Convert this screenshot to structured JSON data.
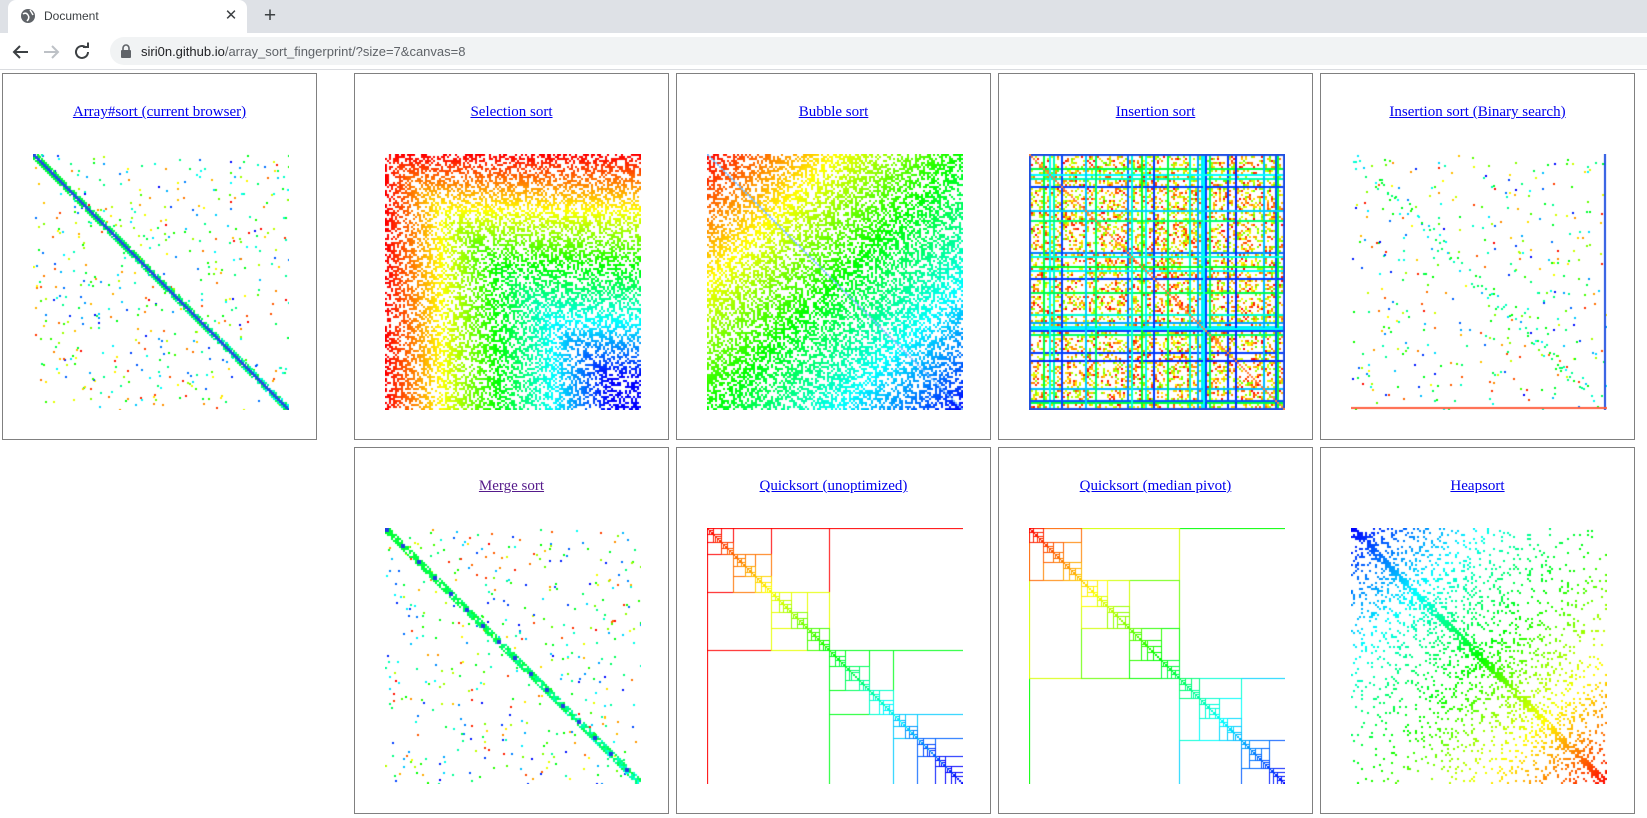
{
  "browser": {
    "tab_title": "Document",
    "url_host": "siri0n.github.io",
    "url_path": "/array_sort_fingerprint/?size=7&canvas=8"
  },
  "panels": [
    {
      "label": "Array#sort (current browser)",
      "pattern": "native"
    },
    {
      "label": "Selection sort",
      "pattern": "selection"
    },
    {
      "label": "Bubble sort",
      "pattern": "bubble"
    },
    {
      "label": "Insertion sort",
      "pattern": "insertion"
    },
    {
      "label": "Insertion sort (Binary search)",
      "pattern": "binary_insertion"
    },
    {
      "label": "Merge sort",
      "pattern": "merge",
      "visited": true
    },
    {
      "label": "Quicksort (unoptimized)",
      "pattern": "quick"
    },
    {
      "label": "Quicksort (median pivot)",
      "pattern": "quick_median"
    },
    {
      "label": "Heapsort",
      "pattern": "heap"
    }
  ]
}
